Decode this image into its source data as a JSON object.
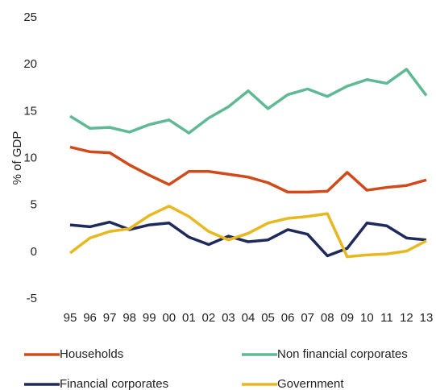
{
  "chart_data": {
    "type": "line",
    "y_label": "% of GDP",
    "categories": [
      "95",
      "96",
      "97",
      "98",
      "99",
      "00",
      "01",
      "02",
      "03",
      "04",
      "05",
      "06",
      "07",
      "08",
      "09",
      "10",
      "11",
      "12",
      "13"
    ],
    "series": [
      {
        "name": "Households",
        "color": "#d2491a",
        "values": [
          11.2,
          10.7,
          10.6,
          9.3,
          8.2,
          7.2,
          8.6,
          8.6,
          8.3,
          8.0,
          7.4,
          6.4,
          6.4,
          6.5,
          8.5,
          6.6,
          6.9,
          7.1,
          7.7
        ]
      },
      {
        "name": "Non financial corporates",
        "color": "#5fb993",
        "values": [
          14.5,
          13.2,
          13.3,
          12.8,
          13.6,
          14.1,
          12.7,
          14.3,
          15.5,
          17.2,
          15.3,
          16.8,
          17.4,
          16.6,
          17.7,
          18.4,
          18.0,
          19.5,
          16.7
        ]
      },
      {
        "name": "Financial corporates",
        "color": "#1f2a5c",
        "values": [
          2.9,
          2.7,
          3.2,
          2.4,
          2.9,
          3.1,
          1.6,
          0.8,
          1.7,
          1.1,
          1.3,
          2.4,
          1.9,
          -0.4,
          0.4,
          3.1,
          2.8,
          1.5,
          1.3
        ]
      },
      {
        "name": "Government",
        "color": "#e8b820",
        "values": [
          -0.1,
          1.5,
          2.2,
          2.5,
          3.9,
          4.9,
          3.8,
          2.2,
          1.3,
          2.0,
          3.1,
          3.6,
          3.8,
          4.1,
          -0.5,
          -0.3,
          -0.2,
          0.1,
          1.2
        ]
      }
    ],
    "ylim": [
      -5,
      25
    ],
    "yticks": [
      -5,
      0,
      5,
      10,
      15,
      20,
      25
    ],
    "grid": false,
    "legend": "bottom"
  }
}
